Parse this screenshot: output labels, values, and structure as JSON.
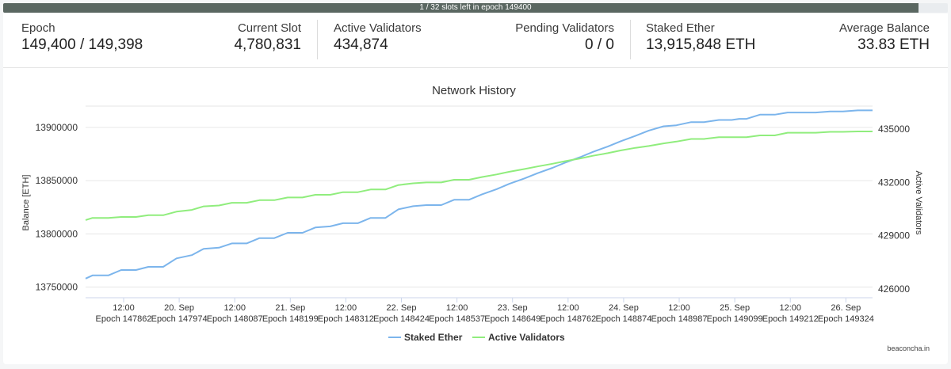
{
  "progress": {
    "label": "1 / 32 slots left in epoch 149400",
    "fraction": 0.969
  },
  "stats": {
    "epoch": {
      "label": "Epoch",
      "value": "149,400 / 149,398"
    },
    "current_slot": {
      "label": "Current Slot",
      "value": "4,780,831"
    },
    "active_validators": {
      "label": "Active Validators",
      "value": "434,874"
    },
    "pending_validators": {
      "label": "Pending Validators",
      "value": "0 / 0"
    },
    "staked_ether": {
      "label": "Staked Ether",
      "value": "13,915,848 ETH"
    },
    "average_balance": {
      "label": "Average Balance",
      "value": "33.83 ETH"
    }
  },
  "watermark": "beaconcha.in",
  "colors": {
    "staked": "#7cb5ec",
    "validators": "#90ed7d"
  },
  "chart_data": {
    "type": "line",
    "title": "Network History",
    "ylabel_left": "Balance [ETH]",
    "ylabel_right": "Active Validators",
    "ylim_left": [
      13740000,
      13920000
    ],
    "ylim_right": [
      425500,
      436300
    ],
    "yticks_left": [
      "13750000",
      "13800000",
      "13850000",
      "13900000"
    ],
    "yticks_right": [
      "426000",
      "429000",
      "432000",
      "435000"
    ],
    "legend_position": "bottom",
    "grid": true,
    "xticks": [
      [
        "12:00",
        "Epoch 147862"
      ],
      [
        "20. Sep",
        "Epoch 147974"
      ],
      [
        "12:00",
        "Epoch 148087"
      ],
      [
        "21. Sep",
        "Epoch 148199"
      ],
      [
        "12:00",
        "Epoch 148312"
      ],
      [
        "22. Sep",
        "Epoch 148424"
      ],
      [
        "12:00",
        "Epoch 148537"
      ],
      [
        "23. Sep",
        "Epoch 148649"
      ],
      [
        "12:00",
        "Epoch 148762"
      ],
      [
        "24. Sep",
        "Epoch 148874"
      ],
      [
        "12:00",
        "Epoch 148987"
      ],
      [
        "25. Sep",
        "Epoch 149099"
      ],
      [
        "12:00",
        "Epoch 149212"
      ],
      [
        "26. Sep",
        "Epoch 149324"
      ]
    ],
    "x": [
      147785,
      147799,
      147831,
      147857,
      147887,
      147912,
      147942,
      147969,
      148000,
      148024,
      148055,
      148081,
      148111,
      148137,
      148167,
      148194,
      148224,
      148250,
      148280,
      148306,
      148336,
      148362,
      148392,
      148418,
      148448,
      148475,
      148505,
      148531,
      148561,
      148587,
      148617,
      148643,
      148673,
      148700,
      148730,
      148756,
      148786,
      148812,
      148842,
      148868,
      148898,
      148925,
      148955,
      148981,
      149011,
      149037,
      149067,
      149093,
      149108,
      149123,
      149150,
      149180,
      149206,
      149225,
      149236,
      149263,
      149292,
      149318,
      149348,
      149364,
      149378
    ],
    "series": [
      {
        "name": "Staked Ether",
        "values": [
          13758000,
          13761000,
          13761000,
          13766000,
          13766000,
          13769000,
          13769000,
          13777000,
          13780000,
          13786000,
          13787000,
          13791000,
          13791000,
          13796000,
          13796000,
          13801000,
          13801000,
          13806000,
          13807000,
          13810000,
          13810000,
          13815000,
          13815000,
          13823000,
          13826000,
          13827000,
          13827000,
          13832000,
          13832000,
          13837000,
          13842000,
          13847000,
          13852000,
          13857000,
          13862000,
          13867000,
          13872000,
          13877000,
          13882000,
          13887000,
          13892000,
          13897000,
          13901000,
          13902000,
          13905000,
          13905000,
          13907000,
          13907000,
          13908000,
          13908000,
          13912000,
          13912000,
          13914000,
          13914000,
          13914000,
          13914000,
          13915000,
          13915000,
          13916000,
          13916000,
          13916000
        ]
      },
      {
        "name": "Active Validators",
        "values": [
          429880,
          430000,
          430000,
          430050,
          430050,
          430150,
          430150,
          430350,
          430450,
          430650,
          430700,
          430850,
          430850,
          431000,
          431000,
          431150,
          431150,
          431300,
          431300,
          431450,
          431450,
          431600,
          431600,
          431850,
          431950,
          432000,
          432000,
          432150,
          432150,
          432300,
          432450,
          432600,
          432750,
          432900,
          433050,
          433200,
          433350,
          433500,
          433650,
          433800,
          433950,
          434050,
          434200,
          434300,
          434450,
          434450,
          434550,
          434550,
          434550,
          434550,
          434650,
          434650,
          434800,
          434800,
          434800,
          434800,
          434850,
          434850,
          434870,
          434870,
          434874
        ]
      }
    ]
  }
}
